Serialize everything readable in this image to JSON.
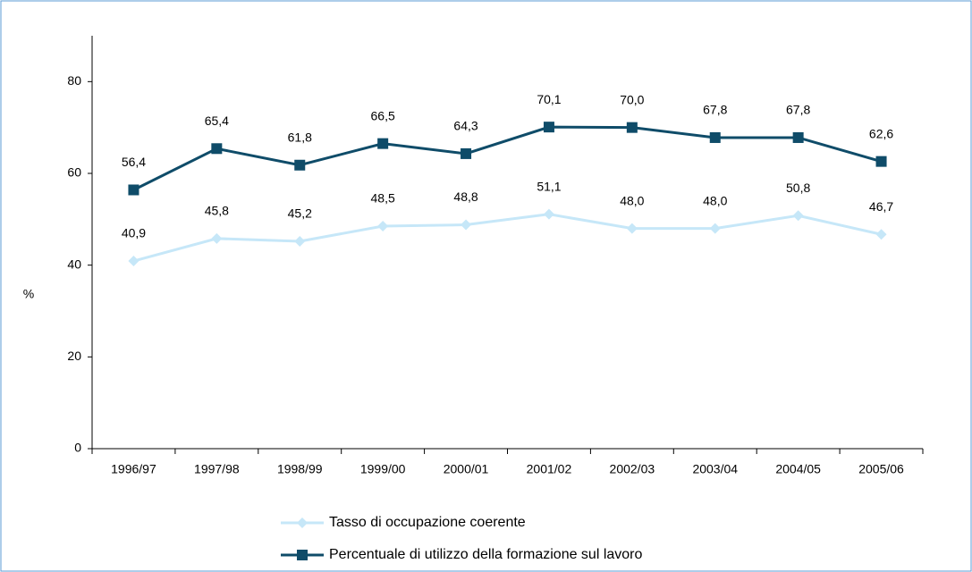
{
  "chart_data": {
    "type": "line",
    "categories": [
      "1996/97",
      "1997/98",
      "1998/99",
      "1999/00",
      "2000/01",
      "2001/02",
      "2002/03",
      "2003/04",
      "2004/05",
      "2005/06"
    ],
    "series": [
      {
        "name": "Tasso di occupazione coerente",
        "color": "#c6e7f8",
        "marker": "diamond",
        "values": [
          40.9,
          45.8,
          45.2,
          48.5,
          48.8,
          51.1,
          48.0,
          48.0,
          50.8,
          46.7
        ],
        "value_labels": [
          "40,9",
          "45,8",
          "45,2",
          "48,5",
          "48,8",
          "51,1",
          "48,0",
          "48,0",
          "50,8",
          "46,7"
        ]
      },
      {
        "name": "Percentuale di utilizzo della formazione sul lavoro",
        "color": "#0f4c69",
        "marker": "square",
        "values": [
          56.4,
          65.4,
          61.8,
          66.5,
          64.3,
          70.1,
          70.0,
          67.8,
          67.8,
          62.6
        ],
        "value_labels": [
          "56,4",
          "65,4",
          "61,8",
          "66,5",
          "64,3",
          "70,1",
          "70,0",
          "67,8",
          "67,8",
          "62,6"
        ]
      }
    ],
    "y_label": "%",
    "ylim": [
      0,
      90
    ],
    "yticks": [
      0,
      20,
      40,
      60,
      80
    ],
    "grid": false,
    "legend": "bottom"
  }
}
